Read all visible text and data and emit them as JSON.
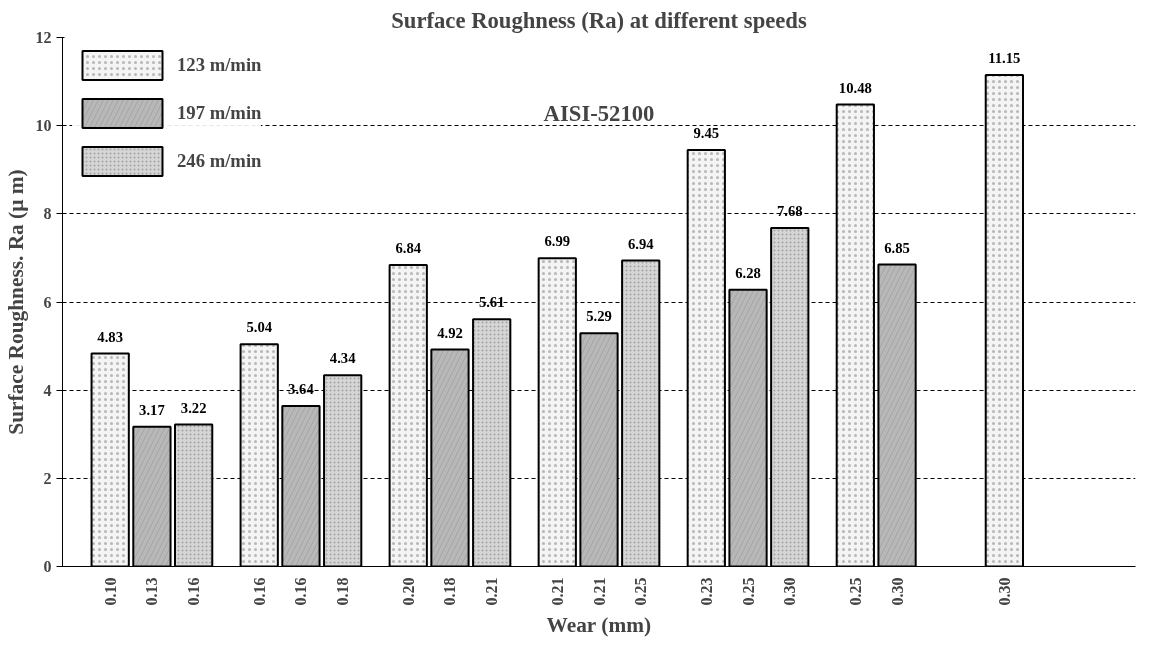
{
  "chart_data": {
    "type": "bar",
    "title": "Surface Roughness (Ra) at different speeds",
    "xlabel": "Wear (mm)",
    "ylabel": "Surface Roughness. Ra (µ m)",
    "categories": [
      null,
      null,
      null,
      null,
      null,
      null,
      null
    ],
    "series": [
      {
        "name": "123 m/min",
        "color": "#f4f4f4",
        "values": [
          4.83,
          5.04,
          6.84,
          6.99,
          9.45,
          10.48,
          11.15
        ]
      },
      {
        "name": "197 m/min",
        "color": "#b8b8b8",
        "values": [
          3.17,
          3.64,
          4.92,
          5.29,
          6.28,
          6.85,
          null
        ]
      },
      {
        "name": "246 m/min",
        "color": "#d6d6d6",
        "values": [
          3.22,
          4.34,
          5.61,
          6.94,
          7.68,
          null,
          null
        ]
      }
    ],
    "annotations": [
      "AISI-52100",
      "0.10",
      "0.13",
      "0.16",
      "0.16",
      "0.16",
      "0.18",
      "0.20",
      "0.18",
      "0.21",
      "0.21",
      "0.21",
      "0.25",
      "0.23",
      "0.25",
      "0.30",
      "0.25",
      "0.30",
      "0.30"
    ],
    "ylim": [
      0,
      12
    ],
    "yticks": [
      0,
      2,
      4,
      6,
      8,
      10,
      12
    ],
    "grid": "y",
    "legend": "top left",
    "data_labels": true
  }
}
